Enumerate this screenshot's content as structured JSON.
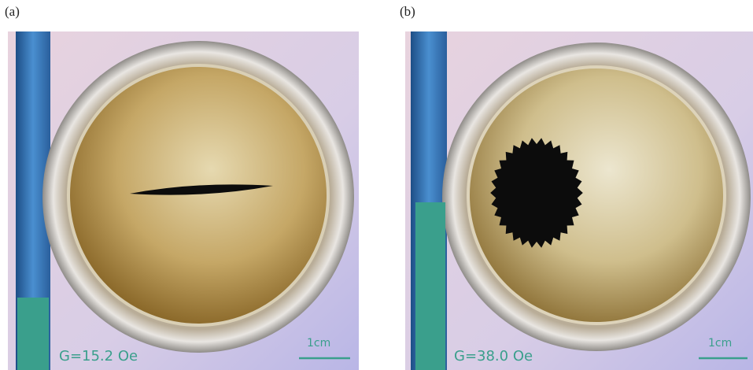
{
  "panels": [
    {
      "label": "(a)",
      "field": "G=15.2 Oe",
      "scale": "1cm"
    },
    {
      "label": "(b)",
      "field": "G=38.0 Oe",
      "scale": "1cm"
    }
  ]
}
